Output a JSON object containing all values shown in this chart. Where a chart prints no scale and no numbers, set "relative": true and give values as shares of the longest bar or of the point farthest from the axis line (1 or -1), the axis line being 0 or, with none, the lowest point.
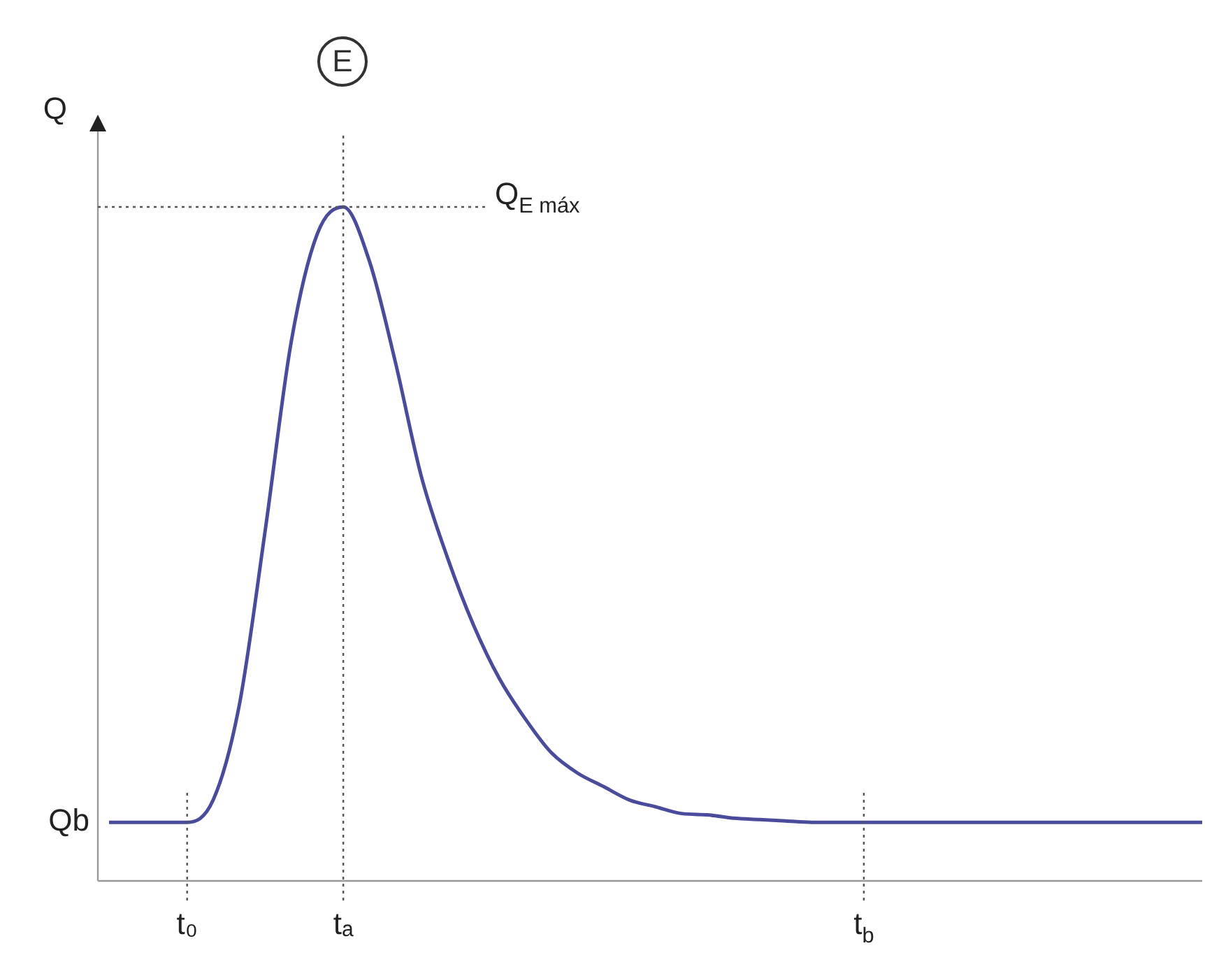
{
  "chart_data": {
    "type": "line",
    "title": "E",
    "ylabel": "Q",
    "relative": true,
    "categories": [
      null,
      null,
      null,
      "t₀",
      null,
      null,
      null,
      null,
      null,
      "tₐ",
      null,
      null,
      null,
      null,
      null,
      null,
      null,
      null,
      null,
      null,
      null,
      null,
      null,
      null,
      null,
      null,
      null,
      null,
      null,
      "t$_{b}$",
      null,
      null,
      null,
      null,
      null,
      null,
      null,
      null,
      null,
      null,
      null,
      null,
      null
    ],
    "series": [
      {
        "color": "#4b4b9c",
        "values": [
          0.087,
          0.087,
          0.087,
          0.087,
          0.12,
          0.26,
          0.52,
          0.8,
          0.96,
          1,
          0.92,
          0.77,
          0.6,
          0.48,
          0.38,
          0.3,
          0.24,
          0.19,
          0.16,
          0.14,
          0.12,
          0.11,
          0.1,
          0.098,
          0.093,
          0.091,
          0.089,
          0.087,
          0.087,
          0.087,
          0.087,
          0.087,
          0.087,
          0.087,
          0.087,
          0.087,
          0.087,
          0.087,
          0.087,
          0.087,
          0.087,
          0.087,
          0.087
        ]
      }
    ],
    "ref_lines": [
      {
        "axis": "x",
        "value": "t₀",
        "line_style": "dotted"
      },
      {
        "axis": "x",
        "value": "tₐ",
        "line_style": "dotted"
      },
      {
        "axis": "x",
        "value": "t$_{b}$",
        "line_style": "dotted"
      },
      {
        "axis": "y",
        "value": 1,
        "label": "Q$_{E máx}$",
        "line_style": "dotted"
      }
    ],
    "annotations": [
      "Qb"
    ],
    "legend": false,
    "marker": "none",
    "line_style": "solid"
  }
}
